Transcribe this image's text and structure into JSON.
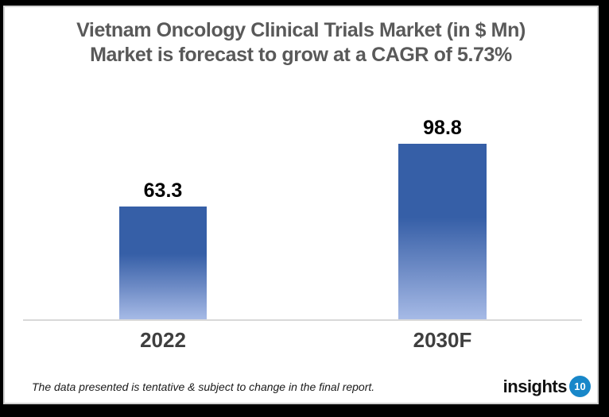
{
  "chart_data": {
    "type": "bar",
    "title_line1": "Vietnam Oncology Clinical Trials Market (in $ Mn)",
    "title_line2": "Market is forecast to grow at a CAGR of 5.73%",
    "categories": [
      "2022",
      "2030F"
    ],
    "values": [
      63.3,
      98.8
    ],
    "data_labels": [
      "63.3",
      "98.8"
    ],
    "xlabel": "",
    "ylabel": "",
    "ylim": [
      0,
      110
    ],
    "grid": false,
    "legend": false,
    "bar_color_top": "#365FA7",
    "bar_color_bottom": "#A6BAE6",
    "axis_line_color": "#D9D9D9"
  },
  "footer": {
    "disclaimer": "The data presented is tentative & subject to change in the final report.",
    "logo_text": "insights",
    "logo_badge": "10",
    "logo_badge_color": "#1887C9"
  },
  "colors": {
    "title_text": "#595959",
    "category_label": "#3F3F3F",
    "data_label": "#000000",
    "card_background": "#FFFFFF",
    "frame_background": "#000000"
  }
}
